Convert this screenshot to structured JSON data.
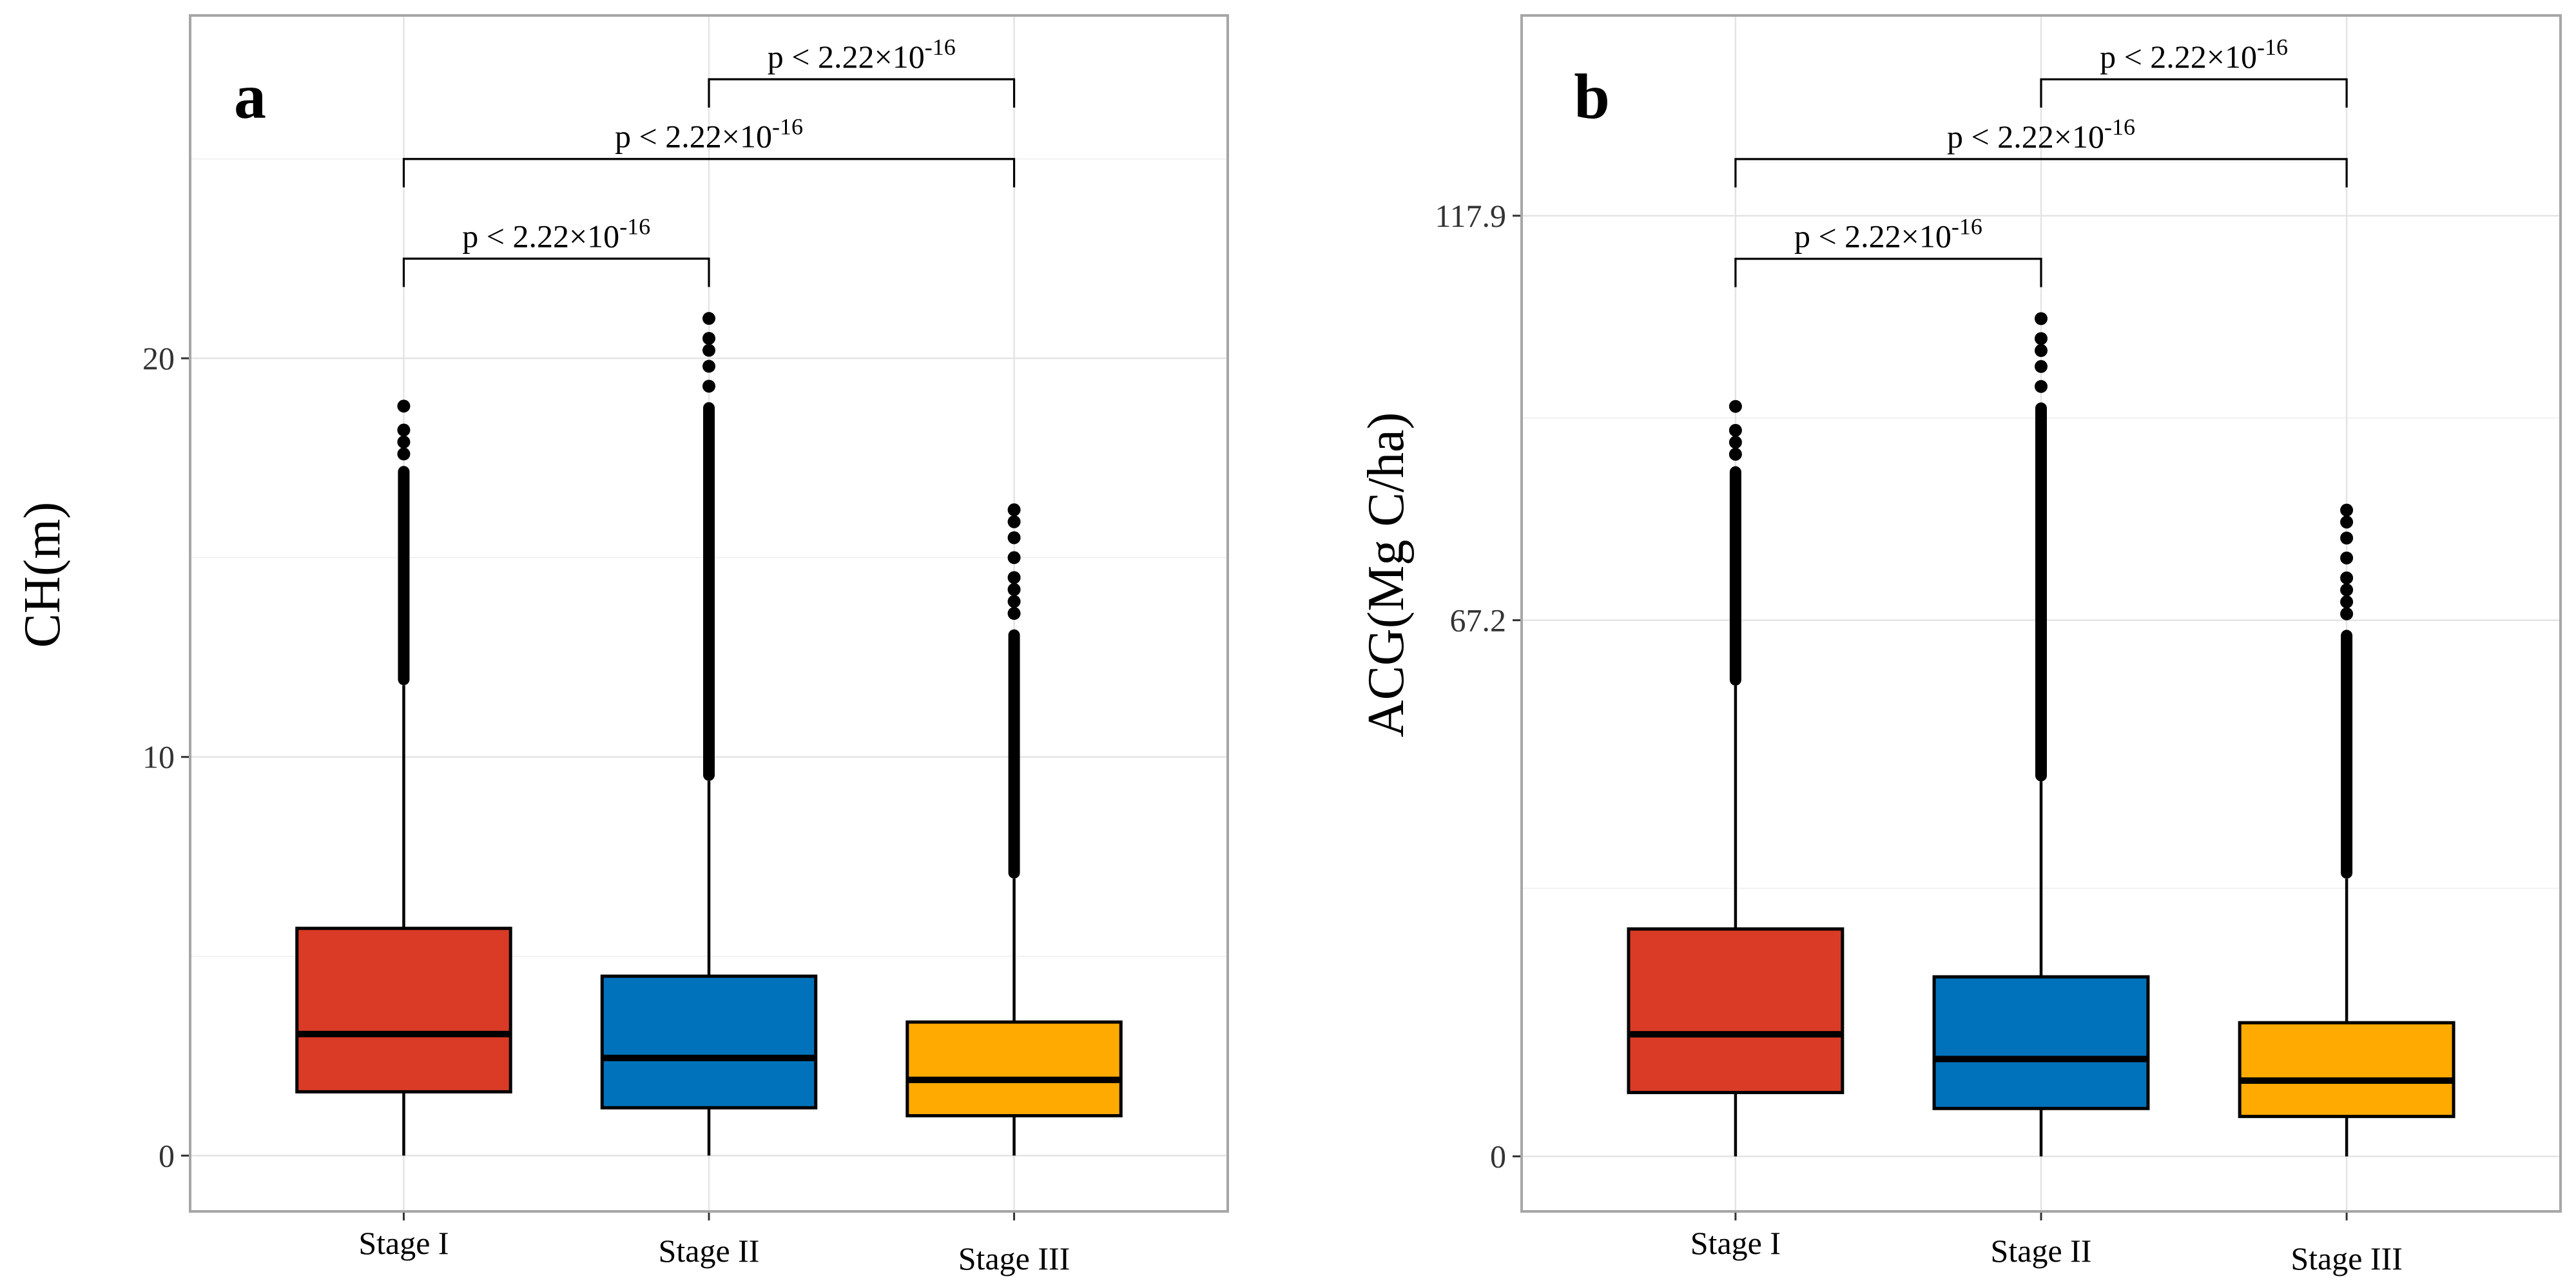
{
  "chart_data": [
    {
      "panel_label": "a",
      "type": "box",
      "ylabel": "CH(m)",
      "xlabel": "",
      "ylim": [
        -1.4,
        28.6
      ],
      "y_ticks": [
        0,
        10,
        20
      ],
      "y_tick_labels": [
        "0",
        "10",
        "20"
      ],
      "grid": true,
      "categories": [
        "Stage I",
        "Stage II",
        "Stage III"
      ],
      "boxes": [
        {
          "category": "Stage I",
          "color": "#D93B26",
          "min": 0,
          "q1": 1.6,
          "median": 3.05,
          "q3": 5.7,
          "whisker_high": 11.8,
          "outliers_dense_from": 11.8,
          "outliers_dense_to": 17.3,
          "outliers": [
            17.6,
            17.9,
            18.2,
            18.8
          ]
        },
        {
          "category": "Stage II",
          "color": "#0072BB",
          "min": 0,
          "q1": 1.2,
          "median": 2.45,
          "q3": 4.5,
          "whisker_high": 9.4,
          "outliers_dense_from": 9.4,
          "outliers_dense_to": 18.9,
          "outliers": [
            19.3,
            19.8,
            20.2,
            20.5,
            21.0
          ]
        },
        {
          "category": "Stage III",
          "color": "#FFAA00",
          "min": 0,
          "q1": 1.0,
          "median": 1.9,
          "q3": 3.35,
          "whisker_high": 6.95,
          "outliers_dense_from": 6.95,
          "outliers_dense_to": 13.2,
          "outliers": [
            13.6,
            13.9,
            14.2,
            14.5,
            15.0,
            15.5,
            15.9,
            16.2
          ]
        }
      ],
      "comparisons": [
        {
          "from": "Stage I",
          "to": "Stage II",
          "y": 22.5,
          "label": "p < 2.22×10",
          "exp": "-16"
        },
        {
          "from": "Stage I",
          "to": "Stage III",
          "y": 25.0,
          "label": "p < 2.22×10",
          "exp": "-16"
        },
        {
          "from": "Stage II",
          "to": "Stage III",
          "y": 27.0,
          "label": "p < 2.22×10",
          "exp": "-16"
        }
      ]
    },
    {
      "panel_label": "b",
      "type": "box",
      "ylabel": "ACG(Mg C/ha)",
      "xlabel": "",
      "ylim": [
        -6.9,
        143.0
      ],
      "y_ticks": [
        0,
        67.2,
        117.9
      ],
      "y_tick_labels": [
        "0",
        "67.2",
        "117.9"
      ],
      "grid": true,
      "categories": [
        "Stage I",
        "Stage II",
        "Stage III"
      ],
      "boxes": [
        {
          "category": "Stage I",
          "color": "#D93B26",
          "min": 0,
          "q1": 8.0,
          "median": 15.3,
          "q3": 28.5,
          "whisker_high": 59.0,
          "outliers_dense_from": 59.0,
          "outliers_dense_to": 86.5,
          "outliers": [
            88.0,
            89.5,
            91.0,
            94.0
          ]
        },
        {
          "category": "Stage II",
          "color": "#0072BB",
          "min": 0,
          "q1": 6.0,
          "median": 12.2,
          "q3": 22.5,
          "whisker_high": 47.0,
          "outliers_dense_from": 47.0,
          "outliers_dense_to": 94.5,
          "outliers": [
            96.5,
            99.0,
            101.0,
            102.5,
            105.0
          ]
        },
        {
          "category": "Stage III",
          "color": "#FFAA00",
          "min": 0,
          "q1": 5.0,
          "median": 9.5,
          "q3": 16.75,
          "whisker_high": 34.8,
          "outliers_dense_from": 34.8,
          "outliers_dense_to": 66.0,
          "outliers": [
            68.0,
            69.5,
            71.0,
            72.5,
            75.0,
            77.5,
            79.5,
            81.0
          ]
        }
      ],
      "comparisons": [
        {
          "from": "Stage I",
          "to": "Stage II",
          "y": 112.5,
          "label": "p < 2.22×10",
          "exp": "-16"
        },
        {
          "from": "Stage I",
          "to": "Stage III",
          "y": 125.0,
          "label": "p < 2.22×10",
          "exp": "-16"
        },
        {
          "from": "Stage II",
          "to": "Stage III",
          "y": 135.0,
          "label": "p < 2.22×10",
          "exp": "-16"
        }
      ]
    }
  ]
}
